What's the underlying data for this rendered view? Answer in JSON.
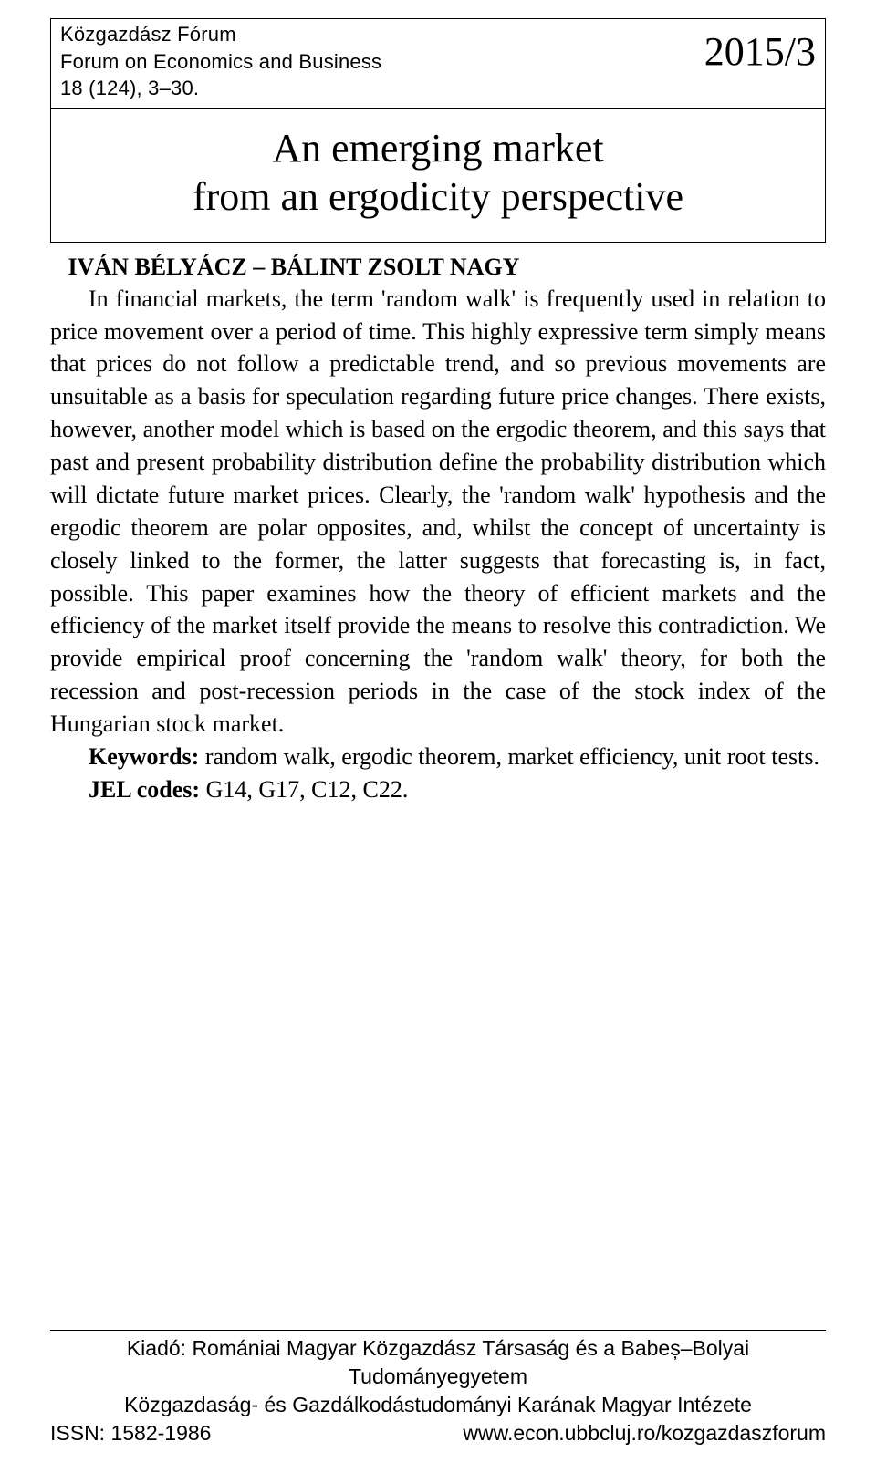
{
  "header": {
    "journal_line1": "Közgazdász Fórum",
    "journal_line2": "Forum on Economics and Business",
    "journal_line3": "18 (124), 3–30.",
    "issue": "2015/3"
  },
  "title": {
    "line1": "An emerging market",
    "line2": "from an ergodicity perspective"
  },
  "authors": "IVÁN BÉLYÁCZ – BÁLINT ZSOLT NAGY",
  "abstract": {
    "body": "In financial markets, the term 'random walk' is frequently used in relation to price movement over a period of time. This highly expressive term simply means that prices do not follow a predictable trend, and so previous movements are unsuitable as a basis for speculation regarding future price changes. There exists, however, another model which is based on the ergodic theorem, and this says that past and present probability distribution define the probability distribution which will dictate future market prices. Clearly, the 'random walk' hypothesis and the ergodic theorem are polar opposites, and, whilst the concept of uncertainty is closely linked to the former, the latter suggests that forecasting is, in fact, possible. This paper examines how the theory of efficient markets and the efficiency of the market itself provide the means to resolve this contradiction. We provide empirical proof concerning the 'random walk' theory, for both the recession and post-recession periods in the case of the stock index of the Hungarian stock market.",
    "keywords_label": "Keywords:",
    "keywords_text": " random walk, ergodic theorem, market efficiency, unit root tests.",
    "jel_label": "JEL codes:",
    "jel_text": " G14, G17, C12, C22."
  },
  "footer": {
    "publisher_line1": "Kiadó: Romániai Magyar Közgazdász Társaság és a Babeș–Bolyai Tudományegyetem",
    "publisher_line2": "Közgazdaság- és Gazdálkodástudományi Karának Magyar Intézete",
    "issn": "ISSN: 1582-1986",
    "url": "www.econ.ubbcluj.ro/kozgazdaszforum"
  }
}
